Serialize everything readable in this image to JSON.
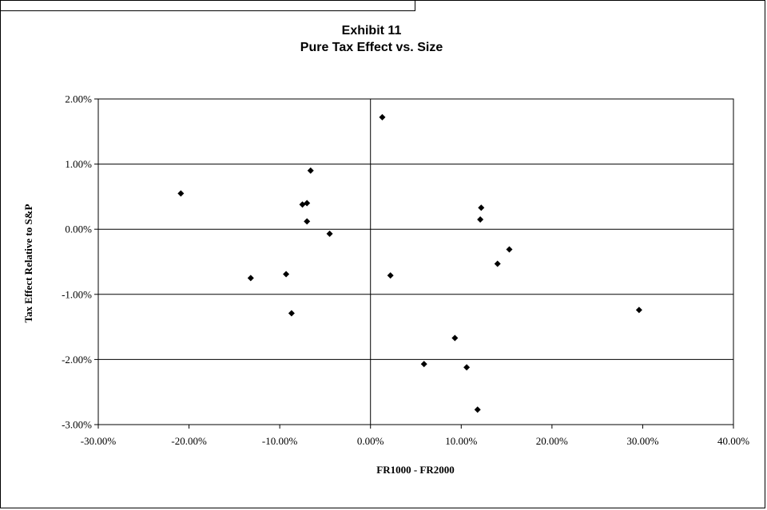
{
  "chart_data": {
    "type": "scatter",
    "title": "Exhibit 11",
    "subtitle": "Pure Tax Effect vs. Size",
    "xlabel": "FR1000 - FR2000",
    "ylabel": "Tax Effect Relative to S&P",
    "xlim": [
      -0.3,
      0.4
    ],
    "ylim": [
      -0.03,
      0.02
    ],
    "x_ticks": [
      -0.3,
      -0.2,
      -0.1,
      0.0,
      0.1,
      0.2,
      0.3,
      0.4
    ],
    "y_ticks": [
      -0.03,
      -0.02,
      -0.01,
      0.0,
      0.01,
      0.02
    ],
    "x_tick_labels": [
      "-30.00%",
      "-20.00%",
      "-10.00%",
      "0.00%",
      "10.00%",
      "20.00%",
      "30.00%",
      "40.00%"
    ],
    "y_tick_labels": [
      "-3.00%",
      "-2.00%",
      "-1.00%",
      "0.00%",
      "1.00%",
      "2.00%"
    ],
    "grid": "horizontal",
    "marker": "diamond",
    "color": "#000000",
    "points": [
      {
        "x": -0.209,
        "y": 0.0055
      },
      {
        "x": -0.132,
        "y": -0.0075
      },
      {
        "x": -0.093,
        "y": -0.0069
      },
      {
        "x": -0.087,
        "y": -0.0129
      },
      {
        "x": -0.075,
        "y": 0.0038
      },
      {
        "x": -0.07,
        "y": 0.004
      },
      {
        "x": -0.07,
        "y": 0.0012
      },
      {
        "x": -0.066,
        "y": 0.009
      },
      {
        "x": -0.045,
        "y": -0.0007
      },
      {
        "x": 0.013,
        "y": 0.0172
      },
      {
        "x": 0.022,
        "y": -0.0071
      },
      {
        "x": 0.059,
        "y": -0.0207
      },
      {
        "x": 0.093,
        "y": -0.0167
      },
      {
        "x": 0.106,
        "y": -0.0212
      },
      {
        "x": 0.118,
        "y": -0.0277
      },
      {
        "x": 0.121,
        "y": 0.0015
      },
      {
        "x": 0.122,
        "y": 0.0033
      },
      {
        "x": 0.14,
        "y": -0.0053
      },
      {
        "x": 0.153,
        "y": -0.0031
      },
      {
        "x": 0.296,
        "y": -0.0124
      }
    ]
  }
}
